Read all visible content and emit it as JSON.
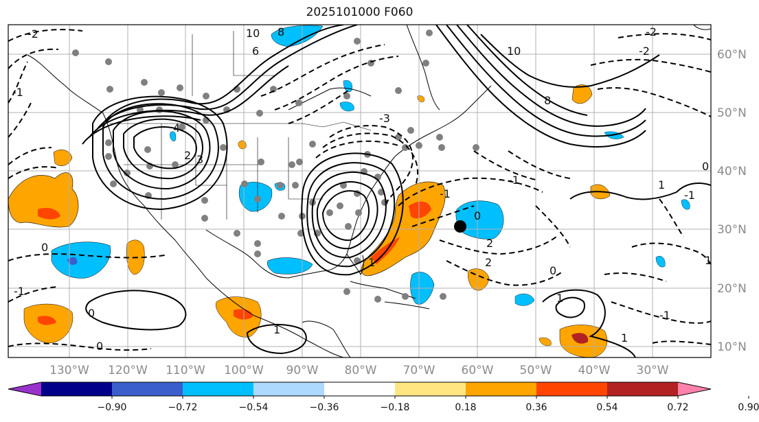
{
  "title": "2025101000 F060",
  "map": {
    "lat_labels": [
      "60°N",
      "50°N",
      "40°N",
      "30°N",
      "20°N",
      "10°N"
    ],
    "lon_labels": [
      "130°W",
      "120°W",
      "110°W",
      "100°W",
      "90°W",
      "80°W",
      "70°W",
      "60°W",
      "50°W",
      "40°W",
      "30°W"
    ],
    "contour_labels": [
      "10",
      "8",
      "6",
      "4",
      "2",
      "0",
      "-1",
      "-2",
      "-3",
      "1",
      "3",
      "-1",
      "2",
      "10",
      "8",
      "-2",
      "-2",
      "1",
      "-1",
      "0",
      "0",
      "-1",
      "0",
      "1",
      "2",
      "0",
      "1",
      "-1",
      "1",
      "0",
      "-1",
      "1"
    ]
  },
  "colorbar": {
    "ticks": [
      "−0.90",
      "−0.72",
      "−0.54",
      "−0.36",
      "−0.18",
      "0.18",
      "0.36",
      "0.54",
      "0.72",
      "0.90"
    ],
    "colors": [
      "#9932cc",
      "#00008b",
      "#3a5fcd",
      "#00bfff",
      "#add8ff",
      "#ffffff",
      "#ffe680",
      "#ffa500",
      "#ff4500",
      "#b22222",
      "#ff82ab"
    ]
  }
}
